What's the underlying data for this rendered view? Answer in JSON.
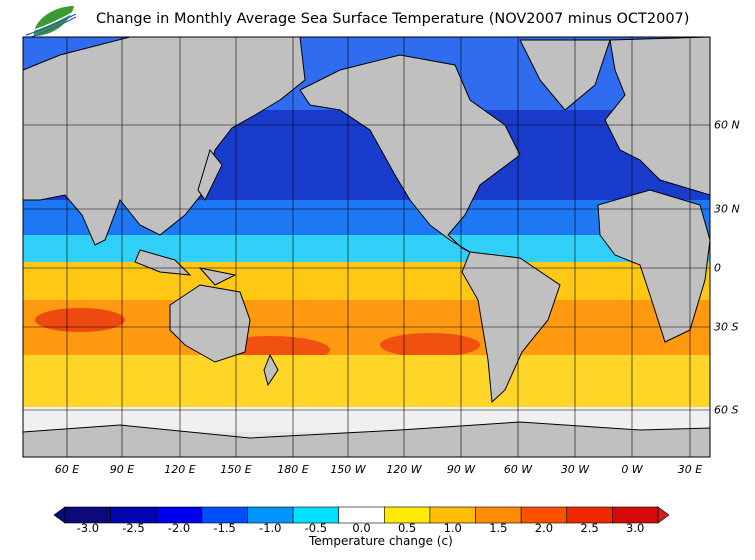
{
  "title": "Change in Monthly Average Sea Surface Temperature (NOV2007 minus OCT2007)",
  "logo_text": "",
  "longitude_labels": [
    "60 E",
    "90 E",
    "120 E",
    "150 E",
    "180 E",
    "150 W",
    "120 W",
    "90 W",
    "60 W",
    "30 W",
    "0 W",
    "30 E"
  ],
  "latitude_labels": [
    "60 N",
    "30 N",
    "0",
    "30 S",
    "60 S"
  ],
  "colorbar": {
    "title": "Temperature change  (c)",
    "ticks": [
      "-3.0",
      "-2.5",
      "-2.0",
      "-1.5",
      "-1.0",
      "-0.5",
      "0.0",
      "0.5",
      "1.0",
      "1.5",
      "2.0",
      "2.5",
      "3.0"
    ],
    "colors": [
      "#0a0a7a",
      "#0505b0",
      "#0000f0",
      "#0050ff",
      "#0096ff",
      "#00e0ff",
      "#ffffff",
      "#ffeb00",
      "#ffbe00",
      "#ff8c00",
      "#ff5000",
      "#f02800",
      "#d20a0a"
    ],
    "under_color": "#0a0a7a",
    "over_color": "#d21e1e"
  },
  "colors": {
    "land": "#c0c0c0",
    "no_data": "#e6e6e6"
  }
}
